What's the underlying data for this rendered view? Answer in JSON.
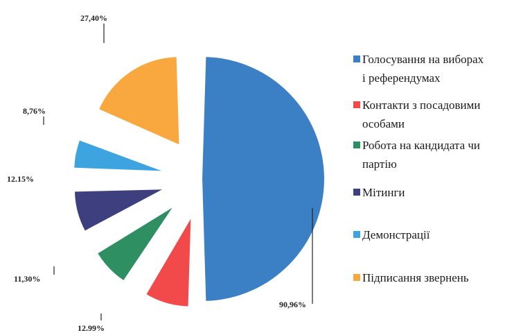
{
  "chart_data": {
    "type": "pie",
    "title": "",
    "exploded": true,
    "legend_position": "right",
    "slices": [
      {
        "label": "Голосування на виборах і референдумах",
        "legend_lines": [
          "Голосування на виборах",
          "і референдумах"
        ],
        "value": 90.96,
        "value_label": "90,96%",
        "color": "#3b80c4",
        "icon": "legend-square"
      },
      {
        "label": "Контакти з посадовими особами",
        "legend_lines": [
          "Контакти з посадовими",
          "особами"
        ],
        "value": 12.99,
        "value_label": "12.99%",
        "color": "#f24a4a",
        "icon": "legend-square"
      },
      {
        "label": "Робота на кандидата чи партію",
        "legend_lines": [
          "Робота на кандидата чи",
          "партію"
        ],
        "value": 11.3,
        "value_label": "11,30%",
        "color": "#2e8f62",
        "icon": "legend-square"
      },
      {
        "label": "Мітинги",
        "legend_lines": [
          "Мітинги"
        ],
        "value": 12.15,
        "value_label": "12.15%",
        "color": "#3e3f7e",
        "icon": "legend-square"
      },
      {
        "label": "Демонстрації",
        "legend_lines": [
          "Демонстрації"
        ],
        "value": 8.76,
        "value_label": "8,76%",
        "color": "#3da4e0",
        "icon": "legend-square"
      },
      {
        "label": "Підписання звернень",
        "legend_lines": [
          "Підписання звернень"
        ],
        "value": 27.4,
        "value_label": "27,40%",
        "color": "#f9a840",
        "icon": "legend-square"
      }
    ]
  }
}
